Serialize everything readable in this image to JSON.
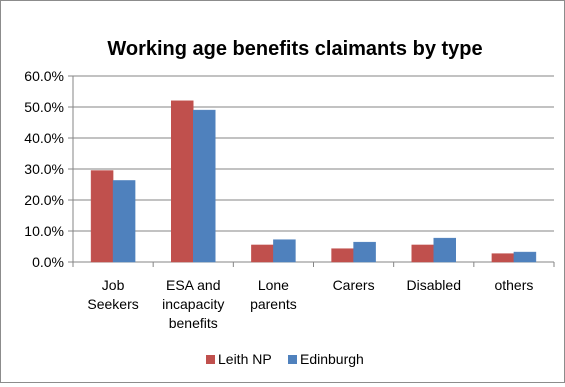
{
  "chart_data": {
    "type": "bar",
    "title": "Working age benefits claimants by type",
    "categories": [
      [
        "Job",
        "Seekers"
      ],
      [
        "ESA and",
        "incapacity",
        "benefits"
      ],
      [
        "Lone",
        "parents"
      ],
      [
        "Carers"
      ],
      [
        "Disabled"
      ],
      [
        "others"
      ]
    ],
    "series": [
      {
        "name": "Leith NP",
        "color": "#c0504d",
        "values": [
          29.5,
          52.0,
          5.5,
          4.3,
          5.5,
          2.7
        ]
      },
      {
        "name": "Edinburgh",
        "color": "#4f81bd",
        "values": [
          26.3,
          49.0,
          7.2,
          6.4,
          7.7,
          3.2
        ]
      }
    ],
    "ylim": [
      0,
      60
    ],
    "yticks": [
      0,
      10,
      20,
      30,
      40,
      50,
      60
    ],
    "ytick_labels": [
      "0.0%",
      "10.0%",
      "20.0%",
      "30.0%",
      "40.0%",
      "50.0%",
      "60.0%"
    ],
    "grid": true,
    "legend_position": "bottom"
  }
}
